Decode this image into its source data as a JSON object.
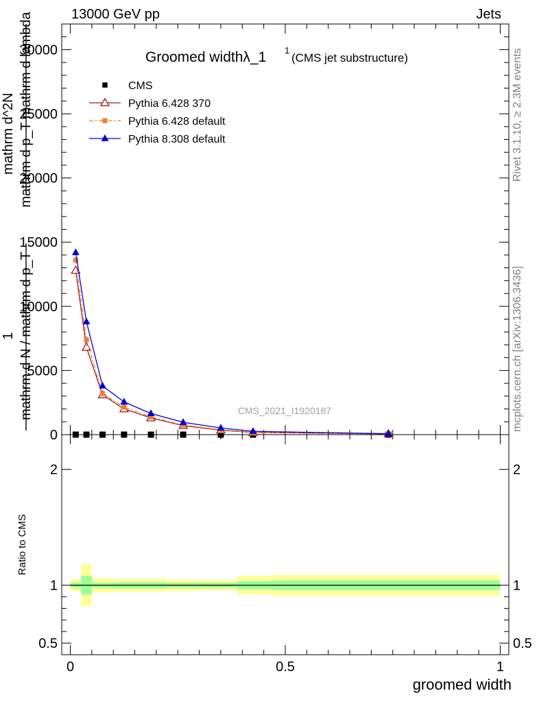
{
  "header": {
    "energy_label": "13000 GeV pp",
    "category_label": "Jets"
  },
  "side_text": {
    "rivet": "Rivet 3.1.10, ≥ 2.3M events",
    "mcplots": "mcplots.cern.ch [arXiv:1306.3436]"
  },
  "watermark": "CMS_2021_I1920187",
  "colors": {
    "cms": "#000000",
    "pythia6_370": "#a01818",
    "pythia6_default": "#f08030",
    "pythia8": "#0000d0",
    "band_outer": "#ffff99",
    "band_inner": "#99ff99"
  },
  "chart_data": [
    {
      "type": "line",
      "title": "Groomed widthλ_1",
      "title_superscript": "1",
      "subtitle": "(CMS jet substructure)",
      "ylabel_parts": [
        "1",
        "mathrm d N / mathrm d p_T",
        "mathrm d^2N",
        "mathrm d p_T mathrm d lambda"
      ],
      "xlim": [
        -0.02,
        1.02
      ],
      "ylim": [
        0,
        32000
      ],
      "yticks": [
        0,
        5000,
        10000,
        15000,
        20000,
        25000,
        30000
      ],
      "ytick_labels": [
        "0",
        "5000",
        "10000",
        "15000",
        "20000",
        "25000",
        "30000"
      ],
      "legend_position": "top-left",
      "series": [
        {
          "name": "CMS",
          "marker": "square",
          "x": [
            0.0125,
            0.0375,
            0.075,
            0.125,
            0.1875,
            0.2625,
            0.35,
            0.425,
            0.74
          ],
          "y": [
            0,
            0,
            0,
            0,
            0,
            0,
            0,
            0,
            0
          ]
        },
        {
          "name": "Pythia 6.428 370",
          "marker": "open-triangle",
          "x": [
            0.0125,
            0.0375,
            0.075,
            0.125,
            0.1875,
            0.2625,
            0.35,
            0.425,
            0.74
          ],
          "y": [
            12800,
            6800,
            3100,
            2000,
            1300,
            700,
            350,
            170,
            60
          ]
        },
        {
          "name": "Pythia 6.428 default",
          "marker": "filled-circle",
          "x": [
            0.0125,
            0.0375,
            0.075,
            0.125,
            0.1875,
            0.2625,
            0.35,
            0.425,
            0.74
          ],
          "y": [
            13600,
            7400,
            3200,
            2150,
            1380,
            750,
            380,
            180,
            60
          ]
        },
        {
          "name": "Pythia 8.308 default",
          "marker": "filled-triangle",
          "x": [
            0.0125,
            0.0375,
            0.075,
            0.125,
            0.1875,
            0.2625,
            0.35,
            0.425,
            0.74
          ],
          "y": [
            14200,
            8800,
            3800,
            2550,
            1650,
            960,
            520,
            260,
            70
          ]
        }
      ]
    },
    {
      "type": "area",
      "xlabel": "groomed width",
      "ylabel": "Ratio to CMS",
      "xlim": [
        -0.02,
        1.02
      ],
      "xticks": [
        0,
        0.5,
        1
      ],
      "xtick_labels": [
        "0",
        "0.5",
        "1"
      ],
      "ylim": [
        0.4,
        2.3
      ],
      "ytick_labels": [
        {
          "value": 0.5,
          "label": "0.5"
        },
        {
          "value": 1,
          "label": "1"
        },
        {
          "value": 2,
          "label": "2"
        }
      ],
      "reference_line": 1,
      "bins": [
        {
          "x0": 0.0,
          "x1": 0.025,
          "outer": [
            0.95,
            1.05
          ],
          "inner": [
            0.98,
            1.02
          ]
        },
        {
          "x0": 0.025,
          "x1": 0.05,
          "outer": [
            0.82,
            1.18
          ],
          "inner": [
            0.92,
            1.08
          ]
        },
        {
          "x0": 0.05,
          "x1": 0.1,
          "outer": [
            0.94,
            1.06
          ],
          "inner": [
            0.98,
            1.02
          ]
        },
        {
          "x0": 0.1,
          "x1": 0.15,
          "outer": [
            0.945,
            1.055
          ],
          "inner": [
            0.975,
            1.025
          ]
        },
        {
          "x0": 0.15,
          "x1": 0.225,
          "outer": [
            0.945,
            1.055
          ],
          "inner": [
            0.975,
            1.025
          ]
        },
        {
          "x0": 0.225,
          "x1": 0.3,
          "outer": [
            0.95,
            1.05
          ],
          "inner": [
            0.98,
            1.02
          ]
        },
        {
          "x0": 0.3,
          "x1": 0.388,
          "outer": [
            0.955,
            1.045
          ],
          "inner": [
            0.98,
            1.02
          ]
        },
        {
          "x0": 0.388,
          "x1": 0.47,
          "outer": [
            0.92,
            1.08
          ],
          "inner": [
            0.965,
            1.035
          ]
        },
        {
          "x0": 0.47,
          "x1": 1.0,
          "outer": [
            0.91,
            1.09
          ],
          "inner": [
            0.96,
            1.04
          ]
        }
      ]
    }
  ]
}
